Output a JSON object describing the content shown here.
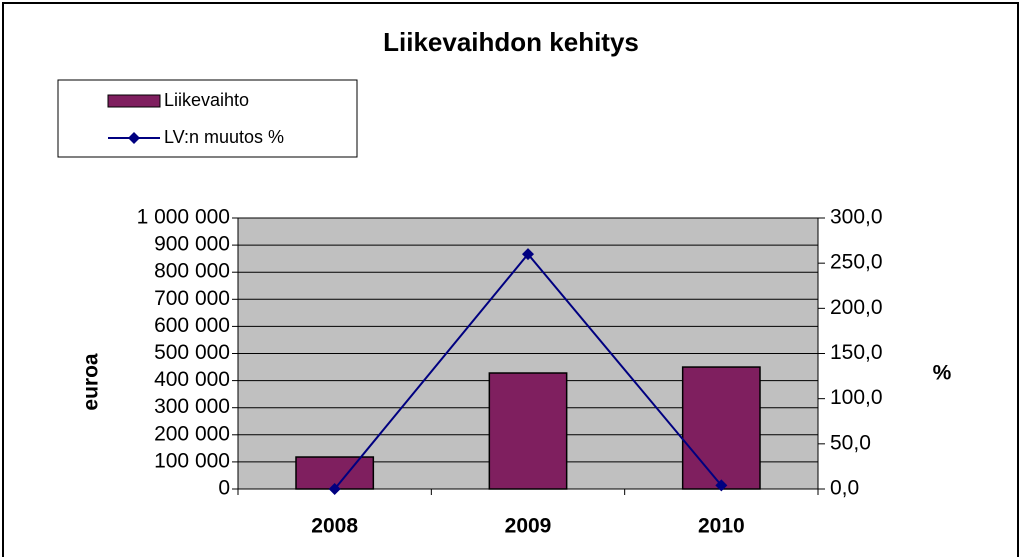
{
  "chart_data": {
    "type": "bar",
    "title": "Liikevaihdon kehitys",
    "categories": [
      "2008",
      "2009",
      "2010"
    ],
    "series": [
      {
        "name": "Liikevaihto",
        "type": "bar",
        "color": "#7f1f5f",
        "values": [
          118000,
          428000,
          450000
        ]
      },
      {
        "name": "LV:n muutos %",
        "type": "line",
        "axis": "y2",
        "color": "#000080",
        "values": [
          0,
          260,
          4
        ]
      }
    ],
    "y_label": "euroa",
    "y2_label": "%",
    "ylim": [
      0,
      1000000
    ],
    "yticks": [
      {
        "value": 0,
        "label": "0"
      },
      {
        "value": 100000,
        "label": "100 000"
      },
      {
        "value": 200000,
        "label": "200 000"
      },
      {
        "value": 300000,
        "label": "300 000"
      },
      {
        "value": 400000,
        "label": "400 000"
      },
      {
        "value": 500000,
        "label": "500 000"
      },
      {
        "value": 600000,
        "label": "600 000"
      },
      {
        "value": 700000,
        "label": "700 000"
      },
      {
        "value": 800000,
        "label": "800 000"
      },
      {
        "value": 900000,
        "label": "900 000"
      },
      {
        "value": 1000000,
        "label": "1 000 000"
      }
    ],
    "y2lim": [
      0,
      300
    ],
    "y2ticks": [
      {
        "value": 0,
        "label": "0,0"
      },
      {
        "value": 50,
        "label": "50,0"
      },
      {
        "value": 100,
        "label": "100,0"
      },
      {
        "value": 150,
        "label": "150,0"
      },
      {
        "value": 200,
        "label": "200,0"
      },
      {
        "value": 250,
        "label": "250,0"
      },
      {
        "value": 300,
        "label": "300,0"
      }
    ],
    "grid": true,
    "plot_background": "#c0c0c0",
    "legend": "top-left"
  }
}
